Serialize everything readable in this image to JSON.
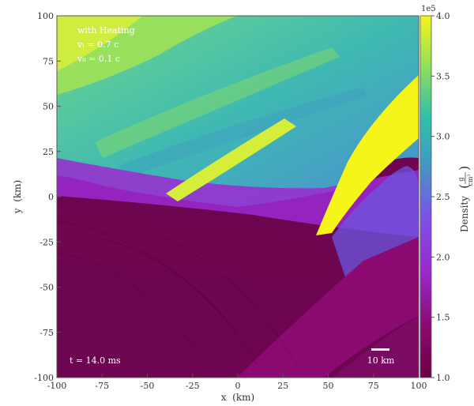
{
  "chart_data": {
    "type": "heatmap",
    "title": "",
    "xlabel": "x  (km)",
    "ylabel": "y  (km)",
    "xlim": [
      -100,
      100
    ],
    "ylim": [
      -100,
      100
    ],
    "xticks": [
      -100,
      -75,
      -50,
      -25,
      0,
      25,
      50,
      75,
      100
    ],
    "yticks": [
      -100,
      -75,
      -50,
      -25,
      0,
      25,
      50,
      75,
      100
    ],
    "colorbar": {
      "label": "Density",
      "unit_num": "g",
      "unit_den": "cm",
      "unit_den_exp": "3",
      "multiplier": "1e5",
      "range": [
        1.0,
        4.0
      ],
      "ticks": [
        "1.0",
        "1.5",
        "2.0",
        "2.5",
        "3.0",
        "3.5",
        "4.0"
      ],
      "colormap": [
        "#6b0040",
        "#8a0a72",
        "#9b2ad0",
        "#7a55e6",
        "#3f9ec0",
        "#2fc0a8",
        "#8fe05a",
        "#f5f51a"
      ]
    },
    "annotations": {
      "line1": "with Heating",
      "line2": "vₗ = 0.7 c",
      "line3": "v₀ = 0.1 c",
      "time": "t = 14.0 ms",
      "scalebar": "10 km",
      "scalebar_length_km": 10
    }
  }
}
